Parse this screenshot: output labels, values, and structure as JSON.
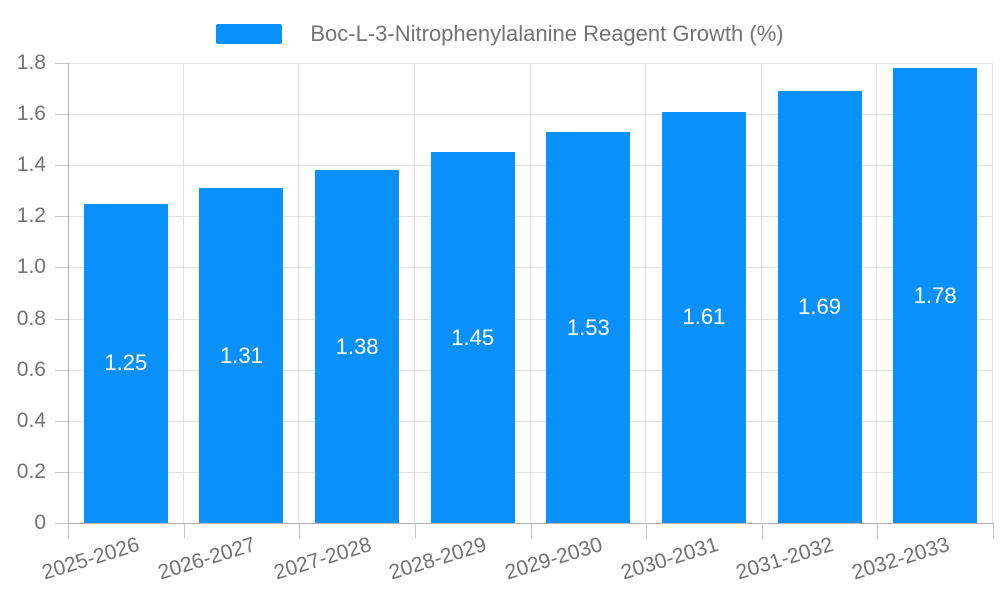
{
  "legend": {
    "label": "Boc-L-3-Nitrophenylalanine Reagent Growth (%)"
  },
  "chart_data": {
    "type": "bar",
    "title": "Boc-L-3-Nitrophenylalanine Reagent Growth (%)",
    "categories": [
      "2025-2026",
      "2026-2027",
      "2027-2028",
      "2028-2029",
      "2029-2030",
      "2030-2031",
      "2031-2032",
      "2032-2033"
    ],
    "values": [
      1.25,
      1.31,
      1.38,
      1.45,
      1.53,
      1.61,
      1.69,
      1.78
    ],
    "value_labels": [
      "1.25",
      "1.31",
      "1.38",
      "1.45",
      "1.53",
      "1.61",
      "1.69",
      "1.78"
    ],
    "xlabel": "",
    "ylabel": "",
    "ylim": [
      0,
      1.8
    ],
    "yticks": [
      0,
      0.2,
      0.4,
      0.6,
      0.8,
      1.0,
      1.2,
      1.4,
      1.6,
      1.8
    ],
    "ytick_labels": [
      "0",
      "0.2",
      "0.4",
      "0.6",
      "0.8",
      "1.0",
      "1.2",
      "1.4",
      "1.6",
      "1.8"
    ],
    "grid": true,
    "legend_position": "top-center",
    "value_label_position": "inside-center"
  },
  "colors": {
    "bar": "#0a90fa",
    "grid": "#e3e3e3",
    "axis": "#b0b0b0",
    "tick": "#c6c6c6",
    "text": "#737373",
    "value_label": "#ffffff",
    "background": "#ffffff"
  }
}
